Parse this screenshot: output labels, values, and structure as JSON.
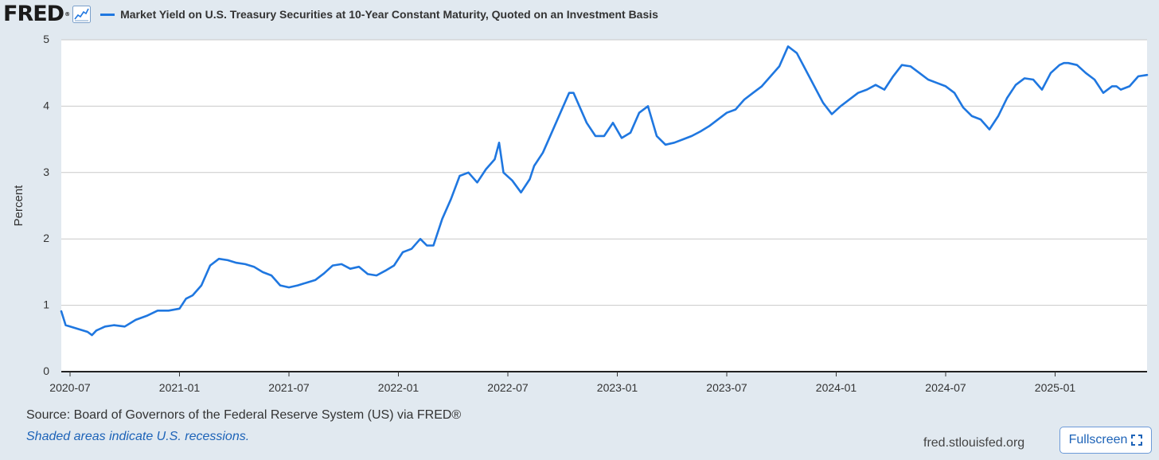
{
  "brand": {
    "logo": "FRED",
    "logo_mark": "®"
  },
  "legend": {
    "series_label": "Market Yield on U.S. Treasury Securities at 10-Year Constant Maturity, Quoted on an Investment Basis"
  },
  "footer": {
    "source": "Source: Board of Governors of the Federal Reserve System (US) via FRED®",
    "note": "Shaded areas indicate U.S. recessions.",
    "site": "fred.stlouisfed.org",
    "fullscreen_label": "Fullscreen"
  },
  "colors": {
    "series": "#1f77e0",
    "background": "#e1e9f0",
    "plot": "#ffffff",
    "grid": "#c9c9c9",
    "axis": "#333333"
  },
  "chart_data": {
    "type": "line",
    "title": "Market Yield on U.S. Treasury Securities at 10-Year Constant Maturity, Quoted on an Investment Basis",
    "xlabel": "",
    "ylabel": "Percent",
    "ylim": [
      0,
      5
    ],
    "xlim": [
      2020.46,
      2025.42
    ],
    "grid": true,
    "yticks": [
      0,
      1,
      2,
      3,
      4,
      5
    ],
    "xticks": [
      {
        "x": 2020.5,
        "label": "2020-07"
      },
      {
        "x": 2021.0,
        "label": "2021-01"
      },
      {
        "x": 2021.5,
        "label": "2021-07"
      },
      {
        "x": 2022.0,
        "label": "2022-01"
      },
      {
        "x": 2022.5,
        "label": "2022-07"
      },
      {
        "x": 2023.0,
        "label": "2023-01"
      },
      {
        "x": 2023.5,
        "label": "2023-07"
      },
      {
        "x": 2024.0,
        "label": "2024-01"
      },
      {
        "x": 2024.5,
        "label": "2024-07"
      },
      {
        "x": 2025.0,
        "label": "2025-01"
      }
    ],
    "series": [
      {
        "name": "Market Yield on U.S. Treasury Securities at 10-Year Constant Maturity, Quoted on an Investment Basis",
        "x": [
          2020.46,
          2020.48,
          2020.5,
          2020.54,
          2020.58,
          2020.6,
          2020.62,
          2020.66,
          2020.7,
          2020.75,
          2020.8,
          2020.85,
          2020.9,
          2020.95,
          2021.0,
          2021.03,
          2021.06,
          2021.1,
          2021.14,
          2021.18,
          2021.22,
          2021.26,
          2021.3,
          2021.34,
          2021.38,
          2021.42,
          2021.46,
          2021.5,
          2021.54,
          2021.58,
          2021.62,
          2021.66,
          2021.7,
          2021.74,
          2021.78,
          2021.82,
          2021.86,
          2021.9,
          2021.94,
          2021.98,
          2022.02,
          2022.06,
          2022.1,
          2022.13,
          2022.16,
          2022.2,
          2022.24,
          2022.28,
          2022.32,
          2022.36,
          2022.4,
          2022.44,
          2022.46,
          2022.48,
          2022.52,
          2022.56,
          2022.6,
          2022.62,
          2022.66,
          2022.7,
          2022.74,
          2022.78,
          2022.8,
          2022.82,
          2022.86,
          2022.9,
          2022.94,
          2022.98,
          2023.02,
          2023.06,
          2023.1,
          2023.14,
          2023.18,
          2023.22,
          2023.26,
          2023.3,
          2023.34,
          2023.38,
          2023.42,
          2023.46,
          2023.5,
          2023.54,
          2023.58,
          2023.62,
          2023.66,
          2023.7,
          2023.74,
          2023.78,
          2023.8,
          2023.82,
          2023.86,
          2023.9,
          2023.94,
          2023.98,
          2024.02,
          2024.06,
          2024.1,
          2024.14,
          2024.18,
          2024.22,
          2024.26,
          2024.3,
          2024.34,
          2024.38,
          2024.42,
          2024.46,
          2024.5,
          2024.54,
          2024.58,
          2024.62,
          2024.66,
          2024.7,
          2024.74,
          2024.78,
          2024.82,
          2024.86,
          2024.9,
          2024.94,
          2024.98,
          2025.02,
          2025.04,
          2025.06,
          2025.1,
          2025.14,
          2025.18,
          2025.22,
          2025.26,
          2025.28,
          2025.3,
          2025.34,
          2025.38,
          2025.42
        ],
        "values": [
          0.91,
          0.7,
          0.68,
          0.64,
          0.6,
          0.55,
          0.62,
          0.68,
          0.7,
          0.68,
          0.78,
          0.84,
          0.92,
          0.92,
          0.95,
          1.1,
          1.15,
          1.3,
          1.6,
          1.7,
          1.68,
          1.64,
          1.62,
          1.58,
          1.5,
          1.45,
          1.3,
          1.27,
          1.3,
          1.34,
          1.38,
          1.48,
          1.6,
          1.62,
          1.55,
          1.58,
          1.47,
          1.45,
          1.52,
          1.6,
          1.8,
          1.85,
          2.0,
          1.9,
          1.9,
          2.3,
          2.6,
          2.95,
          3.0,
          2.85,
          3.05,
          3.2,
          3.45,
          3.0,
          2.88,
          2.7,
          2.9,
          3.1,
          3.3,
          3.6,
          3.9,
          4.2,
          4.2,
          4.05,
          3.75,
          3.55,
          3.55,
          3.75,
          3.52,
          3.6,
          3.9,
          4.0,
          3.55,
          3.42,
          3.45,
          3.5,
          3.55,
          3.62,
          3.7,
          3.8,
          3.9,
          3.95,
          4.1,
          4.2,
          4.3,
          4.45,
          4.6,
          4.9,
          4.85,
          4.8,
          4.55,
          4.3,
          4.05,
          3.88,
          4.0,
          4.1,
          4.2,
          4.25,
          4.32,
          4.25,
          4.45,
          4.62,
          4.6,
          4.5,
          4.4,
          4.35,
          4.3,
          4.2,
          3.98,
          3.85,
          3.8,
          3.65,
          3.85,
          4.12,
          4.32,
          4.42,
          4.4,
          4.25,
          4.5,
          4.62,
          4.65,
          4.65,
          4.62,
          4.5,
          4.4,
          4.2,
          4.3,
          4.3,
          4.25,
          4.3,
          4.45,
          4.47
        ]
      }
    ]
  }
}
